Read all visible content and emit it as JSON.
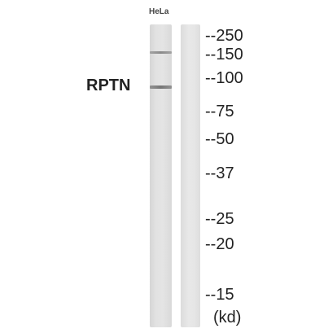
{
  "sample_label": "HeLa",
  "protein_label": "RPTN",
  "markers": [
    "--250",
    "--150",
    "--100",
    "--75",
    "--50",
    "--37",
    "--25",
    "--20",
    "--15"
  ],
  "unit_label": "(kd)"
}
